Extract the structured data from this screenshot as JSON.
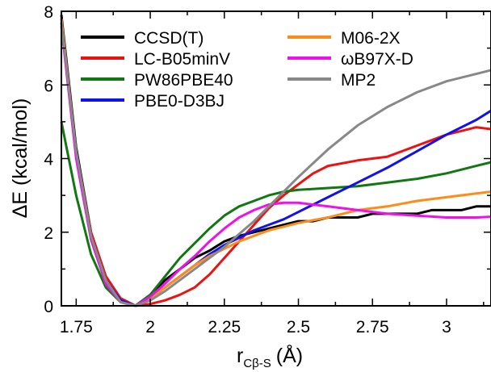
{
  "chart_data": {
    "type": "line",
    "xlim": [
      1.7,
      3.15
    ],
    "ylim": [
      0,
      8
    ],
    "xticks": [
      1.75,
      2,
      2.25,
      2.5,
      2.75,
      3
    ],
    "xtick_labels": [
      "1.75",
      "2",
      "2.25",
      "2.5",
      "2.75",
      "3"
    ],
    "yticks": [
      0,
      2,
      4,
      6,
      8
    ],
    "ytick_labels": [
      "0",
      "2",
      "4",
      "6",
      "8"
    ],
    "xlabel": {
      "main": "r",
      "sub": "Cβ-S",
      "unit": "(Å)"
    },
    "ylabel": "ΔE (kcal/mol)",
    "grid": false,
    "legend_position": "top",
    "series": [
      {
        "name": "CCSD(T)",
        "color": "#000000",
        "points": [
          [
            1.7,
            7.9
          ],
          [
            1.75,
            4.3
          ],
          [
            1.8,
            2.0
          ],
          [
            1.85,
            0.8
          ],
          [
            1.9,
            0.2
          ],
          [
            1.95,
            0.0
          ],
          [
            2.0,
            0.3
          ],
          [
            2.05,
            0.7
          ],
          [
            2.1,
            1.0
          ],
          [
            2.15,
            1.3
          ],
          [
            2.2,
            1.5
          ],
          [
            2.25,
            1.75
          ],
          [
            2.3,
            1.9
          ],
          [
            2.35,
            2.0
          ],
          [
            2.4,
            2.1
          ],
          [
            2.45,
            2.2
          ],
          [
            2.5,
            2.3
          ],
          [
            2.55,
            2.3
          ],
          [
            2.6,
            2.4
          ],
          [
            2.7,
            2.4
          ],
          [
            2.75,
            2.5
          ],
          [
            2.8,
            2.5
          ],
          [
            2.9,
            2.5
          ],
          [
            2.95,
            2.6
          ],
          [
            3.0,
            2.6
          ],
          [
            3.05,
            2.6
          ],
          [
            3.1,
            2.7
          ],
          [
            3.15,
            2.7
          ]
        ]
      },
      {
        "name": "LC-B05minV",
        "color": "#ee1111",
        "points": [
          [
            1.7,
            7.8
          ],
          [
            1.75,
            4.2
          ],
          [
            1.8,
            2.0
          ],
          [
            1.85,
            0.8
          ],
          [
            1.9,
            0.2
          ],
          [
            1.95,
            0.0
          ],
          [
            2.0,
            0.05
          ],
          [
            2.05,
            0.15
          ],
          [
            2.1,
            0.3
          ],
          [
            2.15,
            0.5
          ],
          [
            2.2,
            0.85
          ],
          [
            2.25,
            1.3
          ],
          [
            2.3,
            1.75
          ],
          [
            2.35,
            2.2
          ],
          [
            2.4,
            2.65
          ],
          [
            2.45,
            3.0
          ],
          [
            2.5,
            3.3
          ],
          [
            2.55,
            3.6
          ],
          [
            2.6,
            3.8
          ],
          [
            2.7,
            3.95
          ],
          [
            2.75,
            4.0
          ],
          [
            2.8,
            4.05
          ],
          [
            2.85,
            4.2
          ],
          [
            2.9,
            4.35
          ],
          [
            2.95,
            4.5
          ],
          [
            3.0,
            4.65
          ],
          [
            3.05,
            4.75
          ],
          [
            3.1,
            4.85
          ],
          [
            3.15,
            4.8
          ]
        ]
      },
      {
        "name": "PW86PBE40",
        "color": "#117711",
        "points": [
          [
            1.7,
            5.0
          ],
          [
            1.75,
            3.0
          ],
          [
            1.8,
            1.4
          ],
          [
            1.85,
            0.5
          ],
          [
            1.9,
            0.1
          ],
          [
            1.95,
            0.0
          ],
          [
            2.0,
            0.3
          ],
          [
            2.05,
            0.8
          ],
          [
            2.1,
            1.3
          ],
          [
            2.15,
            1.7
          ],
          [
            2.2,
            2.1
          ],
          [
            2.25,
            2.45
          ],
          [
            2.3,
            2.7
          ],
          [
            2.35,
            2.85
          ],
          [
            2.4,
            3.0
          ],
          [
            2.45,
            3.1
          ],
          [
            2.5,
            3.15
          ],
          [
            2.6,
            3.2
          ],
          [
            2.7,
            3.25
          ],
          [
            2.8,
            3.35
          ],
          [
            2.9,
            3.45
          ],
          [
            3.0,
            3.6
          ],
          [
            3.1,
            3.8
          ],
          [
            3.15,
            3.9
          ]
        ]
      },
      {
        "name": "PBE0-D3BJ",
        "color": "#1111ee",
        "points": [
          [
            1.7,
            7.7
          ],
          [
            1.75,
            4.2
          ],
          [
            1.8,
            1.9
          ],
          [
            1.85,
            0.7
          ],
          [
            1.9,
            0.15
          ],
          [
            1.95,
            0.0
          ],
          [
            2.0,
            0.2
          ],
          [
            2.05,
            0.5
          ],
          [
            2.1,
            0.8
          ],
          [
            2.15,
            1.1
          ],
          [
            2.2,
            1.4
          ],
          [
            2.25,
            1.65
          ],
          [
            2.3,
            1.85
          ],
          [
            2.35,
            2.05
          ],
          [
            2.4,
            2.2
          ],
          [
            2.45,
            2.35
          ],
          [
            2.5,
            2.55
          ],
          [
            2.6,
            2.95
          ],
          [
            2.7,
            3.35
          ],
          [
            2.8,
            3.75
          ],
          [
            2.9,
            4.2
          ],
          [
            3.0,
            4.65
          ],
          [
            3.1,
            5.05
          ],
          [
            3.15,
            5.3
          ]
        ]
      },
      {
        "name": "M06-2X",
        "color": "#ff8c1a",
        "points": [
          [
            1.7,
            7.8
          ],
          [
            1.75,
            4.1
          ],
          [
            1.8,
            1.8
          ],
          [
            1.85,
            0.6
          ],
          [
            1.9,
            0.1
          ],
          [
            1.95,
            0.0
          ],
          [
            2.0,
            0.2
          ],
          [
            2.05,
            0.5
          ],
          [
            2.1,
            0.8
          ],
          [
            2.15,
            1.1
          ],
          [
            2.2,
            1.35
          ],
          [
            2.25,
            1.55
          ],
          [
            2.3,
            1.75
          ],
          [
            2.35,
            1.9
          ],
          [
            2.4,
            2.05
          ],
          [
            2.45,
            2.15
          ],
          [
            2.5,
            2.25
          ],
          [
            2.6,
            2.4
          ],
          [
            2.7,
            2.6
          ],
          [
            2.8,
            2.7
          ],
          [
            2.9,
            2.85
          ],
          [
            3.0,
            2.95
          ],
          [
            3.1,
            3.05
          ],
          [
            3.15,
            3.1
          ]
        ]
      },
      {
        "name": "ωB97X-D",
        "color": "#ee11ee",
        "points": [
          [
            1.7,
            7.6
          ],
          [
            1.75,
            4.0
          ],
          [
            1.8,
            1.8
          ],
          [
            1.85,
            0.6
          ],
          [
            1.9,
            0.1
          ],
          [
            1.95,
            0.0
          ],
          [
            2.0,
            0.25
          ],
          [
            2.05,
            0.6
          ],
          [
            2.1,
            1.0
          ],
          [
            2.15,
            1.35
          ],
          [
            2.2,
            1.75
          ],
          [
            2.25,
            2.1
          ],
          [
            2.3,
            2.4
          ],
          [
            2.35,
            2.6
          ],
          [
            2.4,
            2.75
          ],
          [
            2.45,
            2.8
          ],
          [
            2.5,
            2.8
          ],
          [
            2.6,
            2.7
          ],
          [
            2.7,
            2.6
          ],
          [
            2.8,
            2.5
          ],
          [
            2.9,
            2.45
          ],
          [
            3.0,
            2.4
          ],
          [
            3.1,
            2.4
          ],
          [
            3.15,
            2.42
          ]
        ]
      },
      {
        "name": "MP2",
        "color": "#888888",
        "points": [
          [
            1.7,
            7.7
          ],
          [
            1.75,
            4.2
          ],
          [
            1.8,
            1.9
          ],
          [
            1.85,
            0.7
          ],
          [
            1.9,
            0.1
          ],
          [
            1.95,
            0.0
          ],
          [
            2.0,
            0.15
          ],
          [
            2.05,
            0.4
          ],
          [
            2.1,
            0.7
          ],
          [
            2.15,
            1.0
          ],
          [
            2.2,
            1.3
          ],
          [
            2.25,
            1.6
          ],
          [
            2.3,
            1.95
          ],
          [
            2.35,
            2.3
          ],
          [
            2.4,
            2.7
          ],
          [
            2.45,
            3.1
          ],
          [
            2.5,
            3.5
          ],
          [
            2.6,
            4.25
          ],
          [
            2.7,
            4.9
          ],
          [
            2.8,
            5.4
          ],
          [
            2.9,
            5.8
          ],
          [
            3.0,
            6.1
          ],
          [
            3.1,
            6.3
          ],
          [
            3.15,
            6.4
          ]
        ]
      }
    ]
  },
  "legend": [
    {
      "label": "CCSD(T)",
      "color": "#000000"
    },
    {
      "label": "LC-B05minV",
      "color": "#ee1111"
    },
    {
      "label": "PW86PBE40",
      "color": "#117711"
    },
    {
      "label": "PBE0-D3BJ",
      "color": "#1111ee"
    },
    {
      "label": "M06-2X",
      "color": "#ff8c1a"
    },
    {
      "label": "ωB97X-D",
      "color": "#ee11ee"
    },
    {
      "label": "MP2",
      "color": "#888888"
    }
  ]
}
